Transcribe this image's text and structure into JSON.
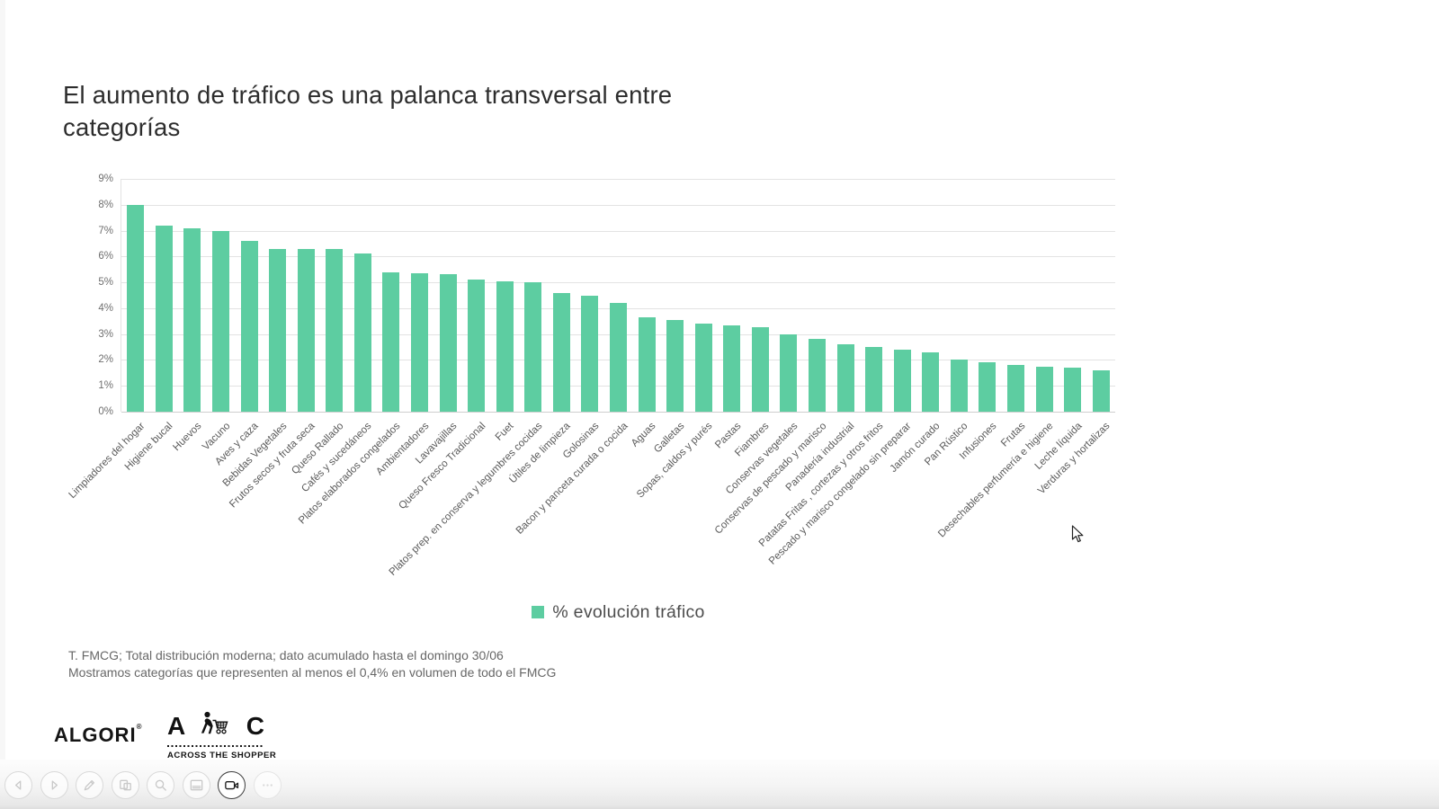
{
  "slide": {
    "title": "El aumento de tráfico es una palanca transversal entre categorías",
    "footnotes": [
      "T. FMCG; Total distribución moderna; dato acumulado hasta el domingo 30/06",
      "Mostramos categorías que representen al menos el 0,4% en volumen de todo el FMCG"
    ]
  },
  "chart_data": {
    "type": "bar",
    "title": "",
    "xlabel": "",
    "ylabel": "",
    "legend": "% evolución tráfico",
    "legend_position": "bottom-center",
    "grid": true,
    "ylim": [
      0,
      9
    ],
    "yticks": [
      "9%",
      "8%",
      "7%",
      "6%",
      "5%",
      "4%",
      "3%",
      "2%",
      "1%",
      "0%"
    ],
    "bar_color": "#5dcda1",
    "categories": [
      "Limpiadores del hogar",
      "Higiene bucal",
      "Huevos",
      "Vacuno",
      "Aves y caza",
      "Bebidas Vegetales",
      "Frutos secos y fruta seca",
      "Queso Rallado",
      "Cafés y sucedáneos",
      "Platos elaborados congelados",
      "Ambientadores",
      "Lavavajillas",
      "Queso Fresco Tradicional",
      "Fuet",
      "Platos prep. en conserva y legumbres cocidas",
      "Útiles de limpieza",
      "Golosinas",
      "Bacon y panceta curada o cocida",
      "Aguas",
      "Galletas",
      "Sopas, caldos y purés",
      "Pastas",
      "Fiambres",
      "Conservas vegetales",
      "Conservas de pescado y marisco",
      "Panadería industrial",
      "Patatas Fritas , cortezas y otros fritos",
      "Pescado y marisco congelado sin preparar",
      "Jamón curado",
      "Pan Rústico",
      "Infusiones",
      "Frutas",
      "Desechables perfumería e higiene",
      "Leche líquida",
      "Verduras y hortalizas"
    ],
    "values": [
      8.0,
      7.2,
      7.1,
      7.0,
      6.6,
      6.3,
      6.3,
      6.3,
      6.1,
      5.4,
      5.35,
      5.3,
      5.1,
      5.05,
      5.0,
      4.6,
      4.5,
      4.2,
      3.65,
      3.55,
      3.4,
      3.35,
      3.25,
      3.0,
      2.8,
      2.6,
      2.5,
      2.4,
      2.3,
      2.0,
      1.9,
      1.8,
      1.75,
      1.7,
      1.6
    ]
  },
  "logos": {
    "algori": "ALGORI",
    "algori_mark": "®",
    "ats_left": "A",
    "ats_right": "C",
    "ats_name": "ACROSS THE SHOPPER"
  },
  "toolbar": {
    "buttons": [
      {
        "name": "previous",
        "icon": "chevron-left"
      },
      {
        "name": "next",
        "icon": "chevron-right"
      },
      {
        "name": "draw",
        "icon": "pen"
      },
      {
        "name": "slides",
        "icon": "slides"
      },
      {
        "name": "zoom",
        "icon": "magnifier"
      },
      {
        "name": "notes",
        "icon": "panel"
      },
      {
        "name": "camera",
        "icon": "video-camera",
        "active": true
      },
      {
        "name": "more",
        "icon": "ellipsis",
        "faint": true
      }
    ]
  }
}
